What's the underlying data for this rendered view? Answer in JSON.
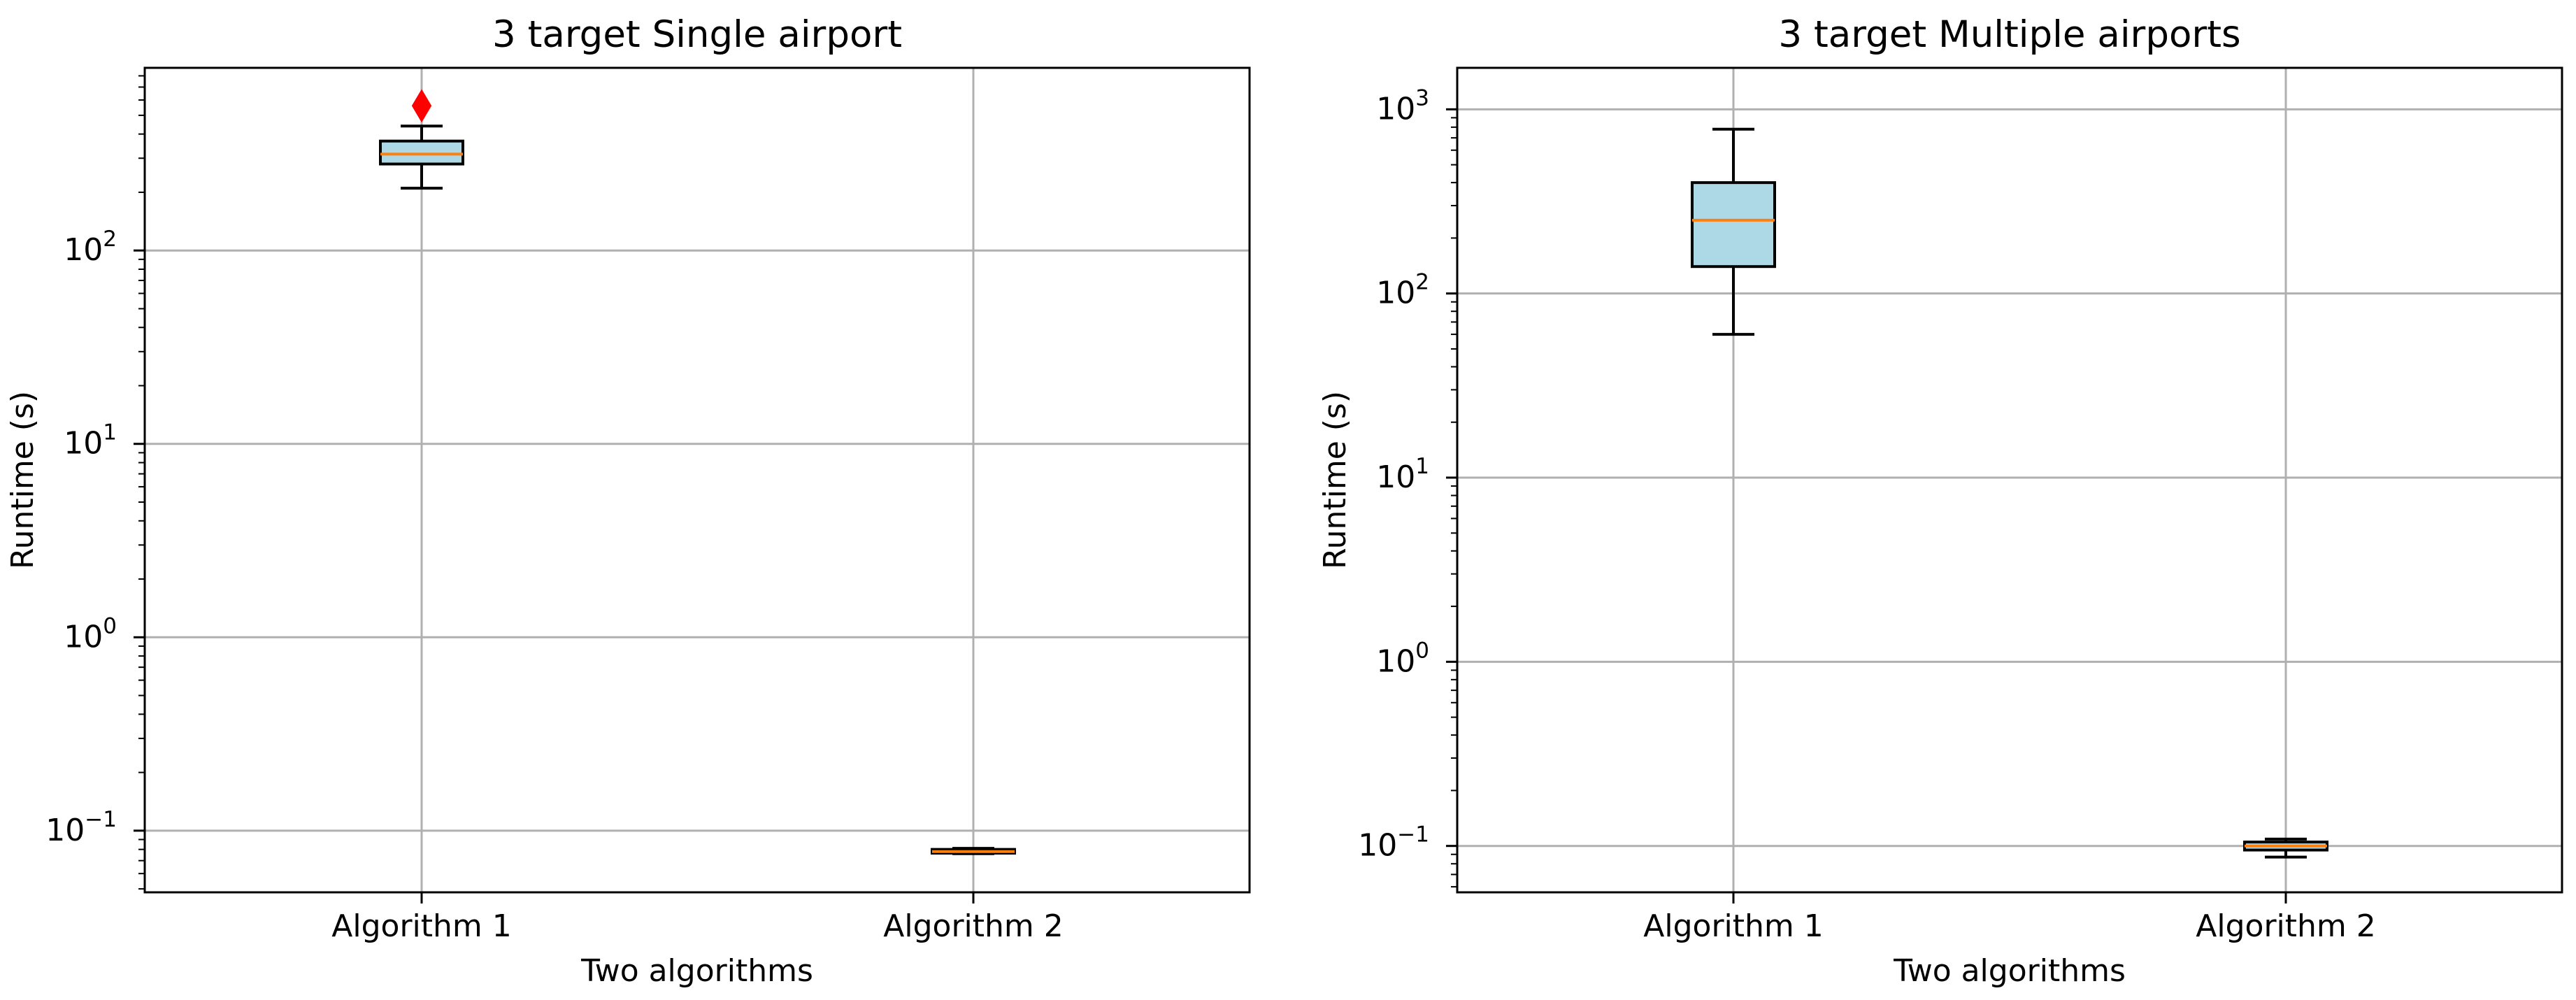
{
  "chart_data": [
    {
      "type": "box",
      "title": "3 target Single airport",
      "xlabel": "Two algorithms",
      "ylabel": "Runtime (s)",
      "yscale": "log",
      "ylim": [
        0.048,
        880
      ],
      "categories": [
        "Algorithm 1",
        "Algorithm 2"
      ],
      "boxes": [
        {
          "name": "Algorithm 1",
          "whisker_low": 210,
          "q1": 280,
          "median": 315,
          "q3": 368,
          "whisker_high": 440,
          "outliers": [
            560
          ]
        },
        {
          "name": "Algorithm 2",
          "whisker_low": 0.076,
          "q1": 0.0765,
          "median": 0.078,
          "q3": 0.08,
          "whisker_high": 0.081,
          "outliers": []
        }
      ],
      "ytick_labels": [
        {
          "value": 0.1,
          "base": "10",
          "exp": "−1"
        },
        {
          "value": 1,
          "base": "10",
          "exp": "0"
        },
        {
          "value": 10,
          "base": "10",
          "exp": "1"
        },
        {
          "value": 100,
          "base": "10",
          "exp": "2"
        }
      ],
      "grid": true
    },
    {
      "type": "box",
      "title": "3 target Multiple airports",
      "xlabel": "Two algorithms",
      "ylabel": "Runtime (s)",
      "yscale": "log",
      "ylim": [
        0.056,
        1680
      ],
      "categories": [
        "Algorithm 1",
        "Algorithm 2"
      ],
      "boxes": [
        {
          "name": "Algorithm 1",
          "whisker_low": 60,
          "q1": 140,
          "median": 250,
          "q3": 400,
          "whisker_high": 780,
          "outliers": []
        },
        {
          "name": "Algorithm 2",
          "whisker_low": 0.087,
          "q1": 0.095,
          "median": 0.1,
          "q3": 0.105,
          "whisker_high": 0.109,
          "outliers": []
        }
      ],
      "ytick_labels": [
        {
          "value": 0.1,
          "base": "10",
          "exp": "−1"
        },
        {
          "value": 1,
          "base": "10",
          "exp": "0"
        },
        {
          "value": 10,
          "base": "10",
          "exp": "1"
        },
        {
          "value": 100,
          "base": "10",
          "exp": "2"
        },
        {
          "value": 1000,
          "base": "10",
          "exp": "3"
        }
      ],
      "grid": true
    }
  ],
  "colors": {
    "box_fill": "#add8e6",
    "median": "#ff7f0e",
    "outlier": "#ff0000",
    "grid": "#b0b0b0",
    "axis": "#000000"
  }
}
